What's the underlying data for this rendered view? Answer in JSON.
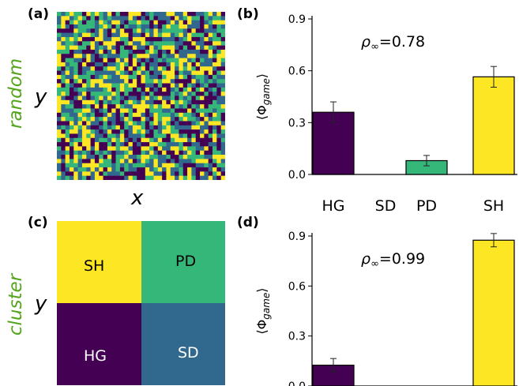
{
  "panels": {
    "a": {
      "label": "(a)"
    },
    "b": {
      "label": "(b)"
    },
    "c": {
      "label": "(c)"
    },
    "d": {
      "label": "(d)"
    }
  },
  "row_labels": {
    "top": "random",
    "bottom": "cluster"
  },
  "grid_axes": {
    "x": "x",
    "y_top": "y",
    "y_bottom": "y"
  },
  "colors": {
    "HG": "#440154",
    "SD": "#31688e",
    "PD": "#35b779",
    "SH": "#fde725",
    "row_label": "#55a51c"
  },
  "cluster_quadrants": [
    "SH",
    "PD",
    "HG",
    "SD"
  ],
  "chart_data": [
    {
      "type": "bar",
      "panel": "b",
      "categories": [
        "HG",
        "SD",
        "PD",
        "SH"
      ],
      "values": [
        0.36,
        0.0,
        0.08,
        0.565
      ],
      "errors": [
        0.06,
        0.0,
        0.03,
        0.06
      ],
      "ylabel": "⟨Φgame⟩",
      "ylim": [
        0,
        0.9
      ],
      "yticks": [
        "0.0",
        "0.3",
        "0.6",
        "0.9"
      ],
      "annotation": "ρ∞=0.78",
      "grid": false
    },
    {
      "type": "bar",
      "panel": "d",
      "categories": [
        "HG",
        "SD",
        "PD",
        "SH"
      ],
      "values": [
        0.125,
        0.0,
        0.0,
        0.875
      ],
      "errors": [
        0.04,
        0.0,
        0.0,
        0.04
      ],
      "ylabel": "⟨Φgame⟩",
      "ylim": [
        0,
        0.9
      ],
      "yticks": [
        "0.0",
        "0.3",
        "0.6",
        "0.9"
      ],
      "annotation": "ρ∞=0.99",
      "grid": false
    }
  ]
}
